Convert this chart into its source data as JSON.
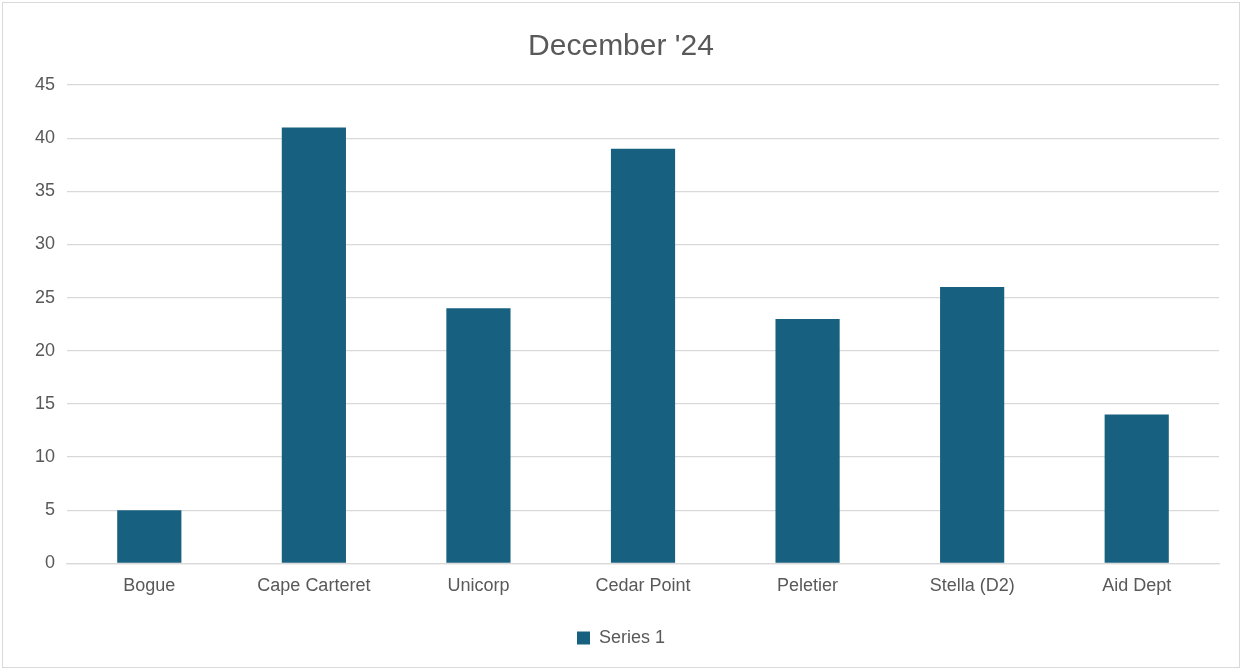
{
  "chart_data": {
    "type": "bar",
    "title": "December '24",
    "categories": [
      "Bogue",
      "Cape Carteret",
      "Unicorp",
      "Cedar Point",
      "Peletier",
      "Stella (D2)",
      "Aid Dept"
    ],
    "series": [
      {
        "name": "Series 1",
        "color": "#17607f",
        "values": [
          5,
          41,
          24,
          39,
          23,
          26,
          14
        ]
      }
    ],
    "ylim": [
      0,
      45
    ],
    "yticks": [
      0,
      5,
      10,
      15,
      20,
      25,
      30,
      35,
      40,
      45
    ],
    "grid": "y",
    "legend": "bottom"
  }
}
